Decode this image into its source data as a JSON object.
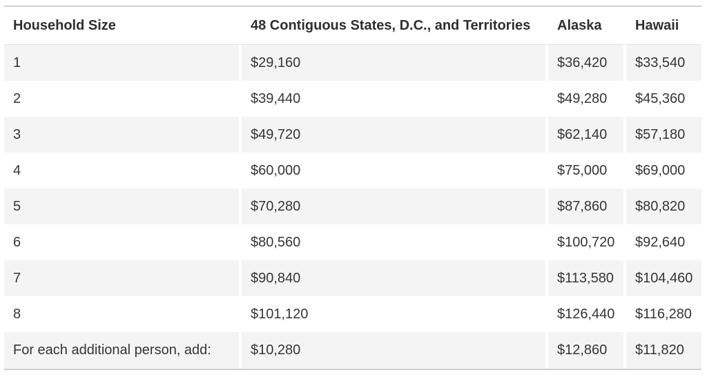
{
  "table": {
    "headers": [
      "Household Size",
      "48 Contiguous States, D.C., and Territories",
      "Alaska",
      "Hawaii"
    ],
    "rows": [
      [
        "1",
        "$29,160",
        "$36,420",
        "$33,540"
      ],
      [
        "2",
        "$39,440",
        "$49,280",
        "$45,360"
      ],
      [
        "3",
        "$49,720",
        "$62,140",
        "$57,180"
      ],
      [
        "4",
        "$60,000",
        "$75,000",
        "$69,000"
      ],
      [
        "5",
        "$70,280",
        "$87,860",
        "$80,820"
      ],
      [
        "6",
        "$80,560",
        "$100,720",
        "$92,640"
      ],
      [
        "7",
        "$90,840",
        "$113,580",
        "$104,460"
      ],
      [
        "8",
        "$101,120",
        "$126,440",
        "$116,280"
      ],
      [
        "For each additional person, add:",
        "$10,280",
        "$12,860",
        "$11,820"
      ]
    ]
  },
  "colors": {
    "stripe": "#f4f4f4",
    "border": "#cfcfcf",
    "text": "#333333"
  }
}
